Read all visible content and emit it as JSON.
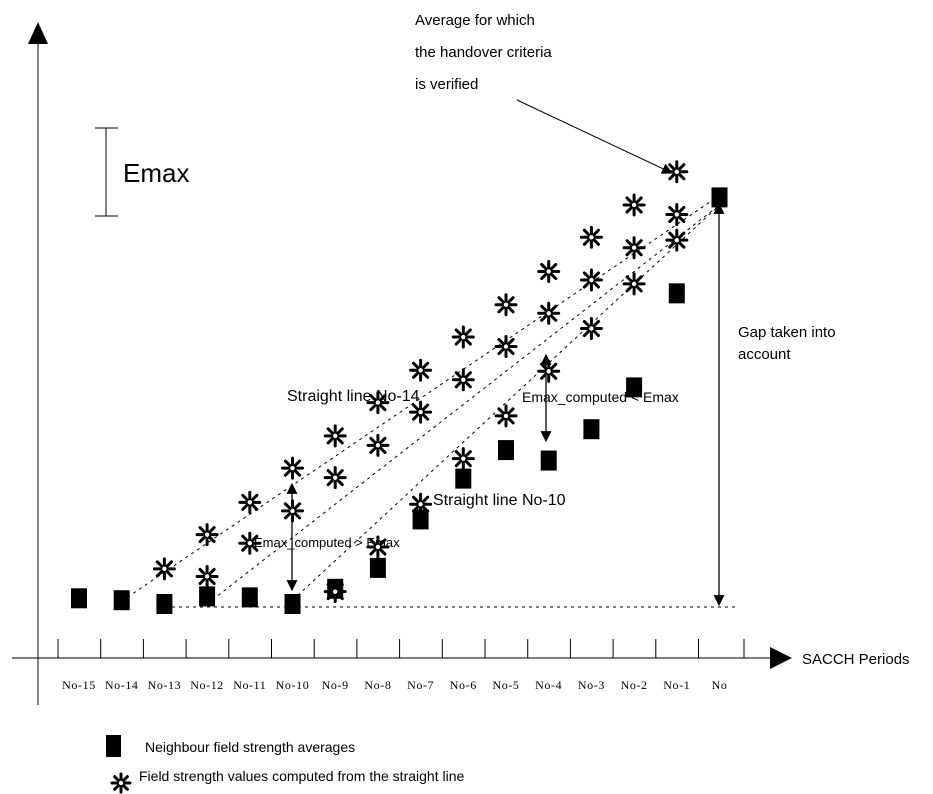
{
  "annotations": {
    "average_line1": "Average for which",
    "average_line2": "the handover criteria",
    "average_line3": "is verified",
    "emax": "Emax",
    "gap_line1": "Gap taken into",
    "gap_line2": "account",
    "line14": "Straight line No-14",
    "line10": "Straight line No-10",
    "emax_less": "Emax_computed < Emax",
    "emax_greater": "Emax_computed > Emax"
  },
  "x_axis": {
    "label": "SACCH Periods",
    "ticks": [
      "No-15",
      "No-14",
      "No-13",
      "No-12",
      "No-11",
      "No-10",
      "No-9",
      "No-8",
      "No-7",
      "No-6",
      "No-5",
      "No-4",
      "No-3",
      "No-2",
      "No-1",
      "No"
    ]
  },
  "legend": {
    "squares_label": "Neighbour field strength averages",
    "stars_label": "Field strength values computed from  the straight line"
  },
  "series": {
    "averages": [
      0.6,
      0.4,
      0,
      0.8,
      0.7,
      0,
      1.6,
      3.8,
      8.9,
      13.2,
      16.2,
      15.1,
      18.4,
      22.8,
      32.7,
      42.8
    ],
    "line14_points": [
      [
        -13,
        3.7
      ],
      [
        -12,
        7.3
      ],
      [
        -11,
        10.7
      ],
      [
        -10,
        14.3
      ],
      [
        -9,
        17.7
      ],
      [
        -8,
        21.2
      ],
      [
        -7,
        24.6
      ],
      [
        -6,
        28.1
      ],
      [
        -5,
        31.5
      ],
      [
        -4,
        35.0
      ],
      [
        -3,
        38.6
      ],
      [
        -2,
        42.0
      ],
      [
        -1,
        45.5
      ]
    ],
    "line14_offset_points": [
      [
        -12,
        2.9
      ],
      [
        -11,
        6.4
      ],
      [
        -10,
        9.8
      ],
      [
        -9,
        13.3
      ],
      [
        -8,
        16.7
      ],
      [
        -7,
        20.2
      ],
      [
        -6,
        23.6
      ],
      [
        -5,
        27.1
      ],
      [
        -4,
        30.6
      ],
      [
        -3,
        34.1
      ],
      [
        -2,
        37.5
      ],
      [
        -1,
        41.0
      ]
    ],
    "line10_points": [
      [
        -9,
        1.3
      ],
      [
        -8,
        6.0
      ],
      [
        -7,
        10.5
      ],
      [
        -6,
        15.3
      ],
      [
        -5,
        19.8
      ],
      [
        -4,
        24.5
      ],
      [
        -3,
        29.0
      ],
      [
        -2,
        33.7
      ],
      [
        -1,
        38.3
      ]
    ]
  },
  "colors": {
    "ink": "#000000",
    "paper": "#ffffff"
  }
}
